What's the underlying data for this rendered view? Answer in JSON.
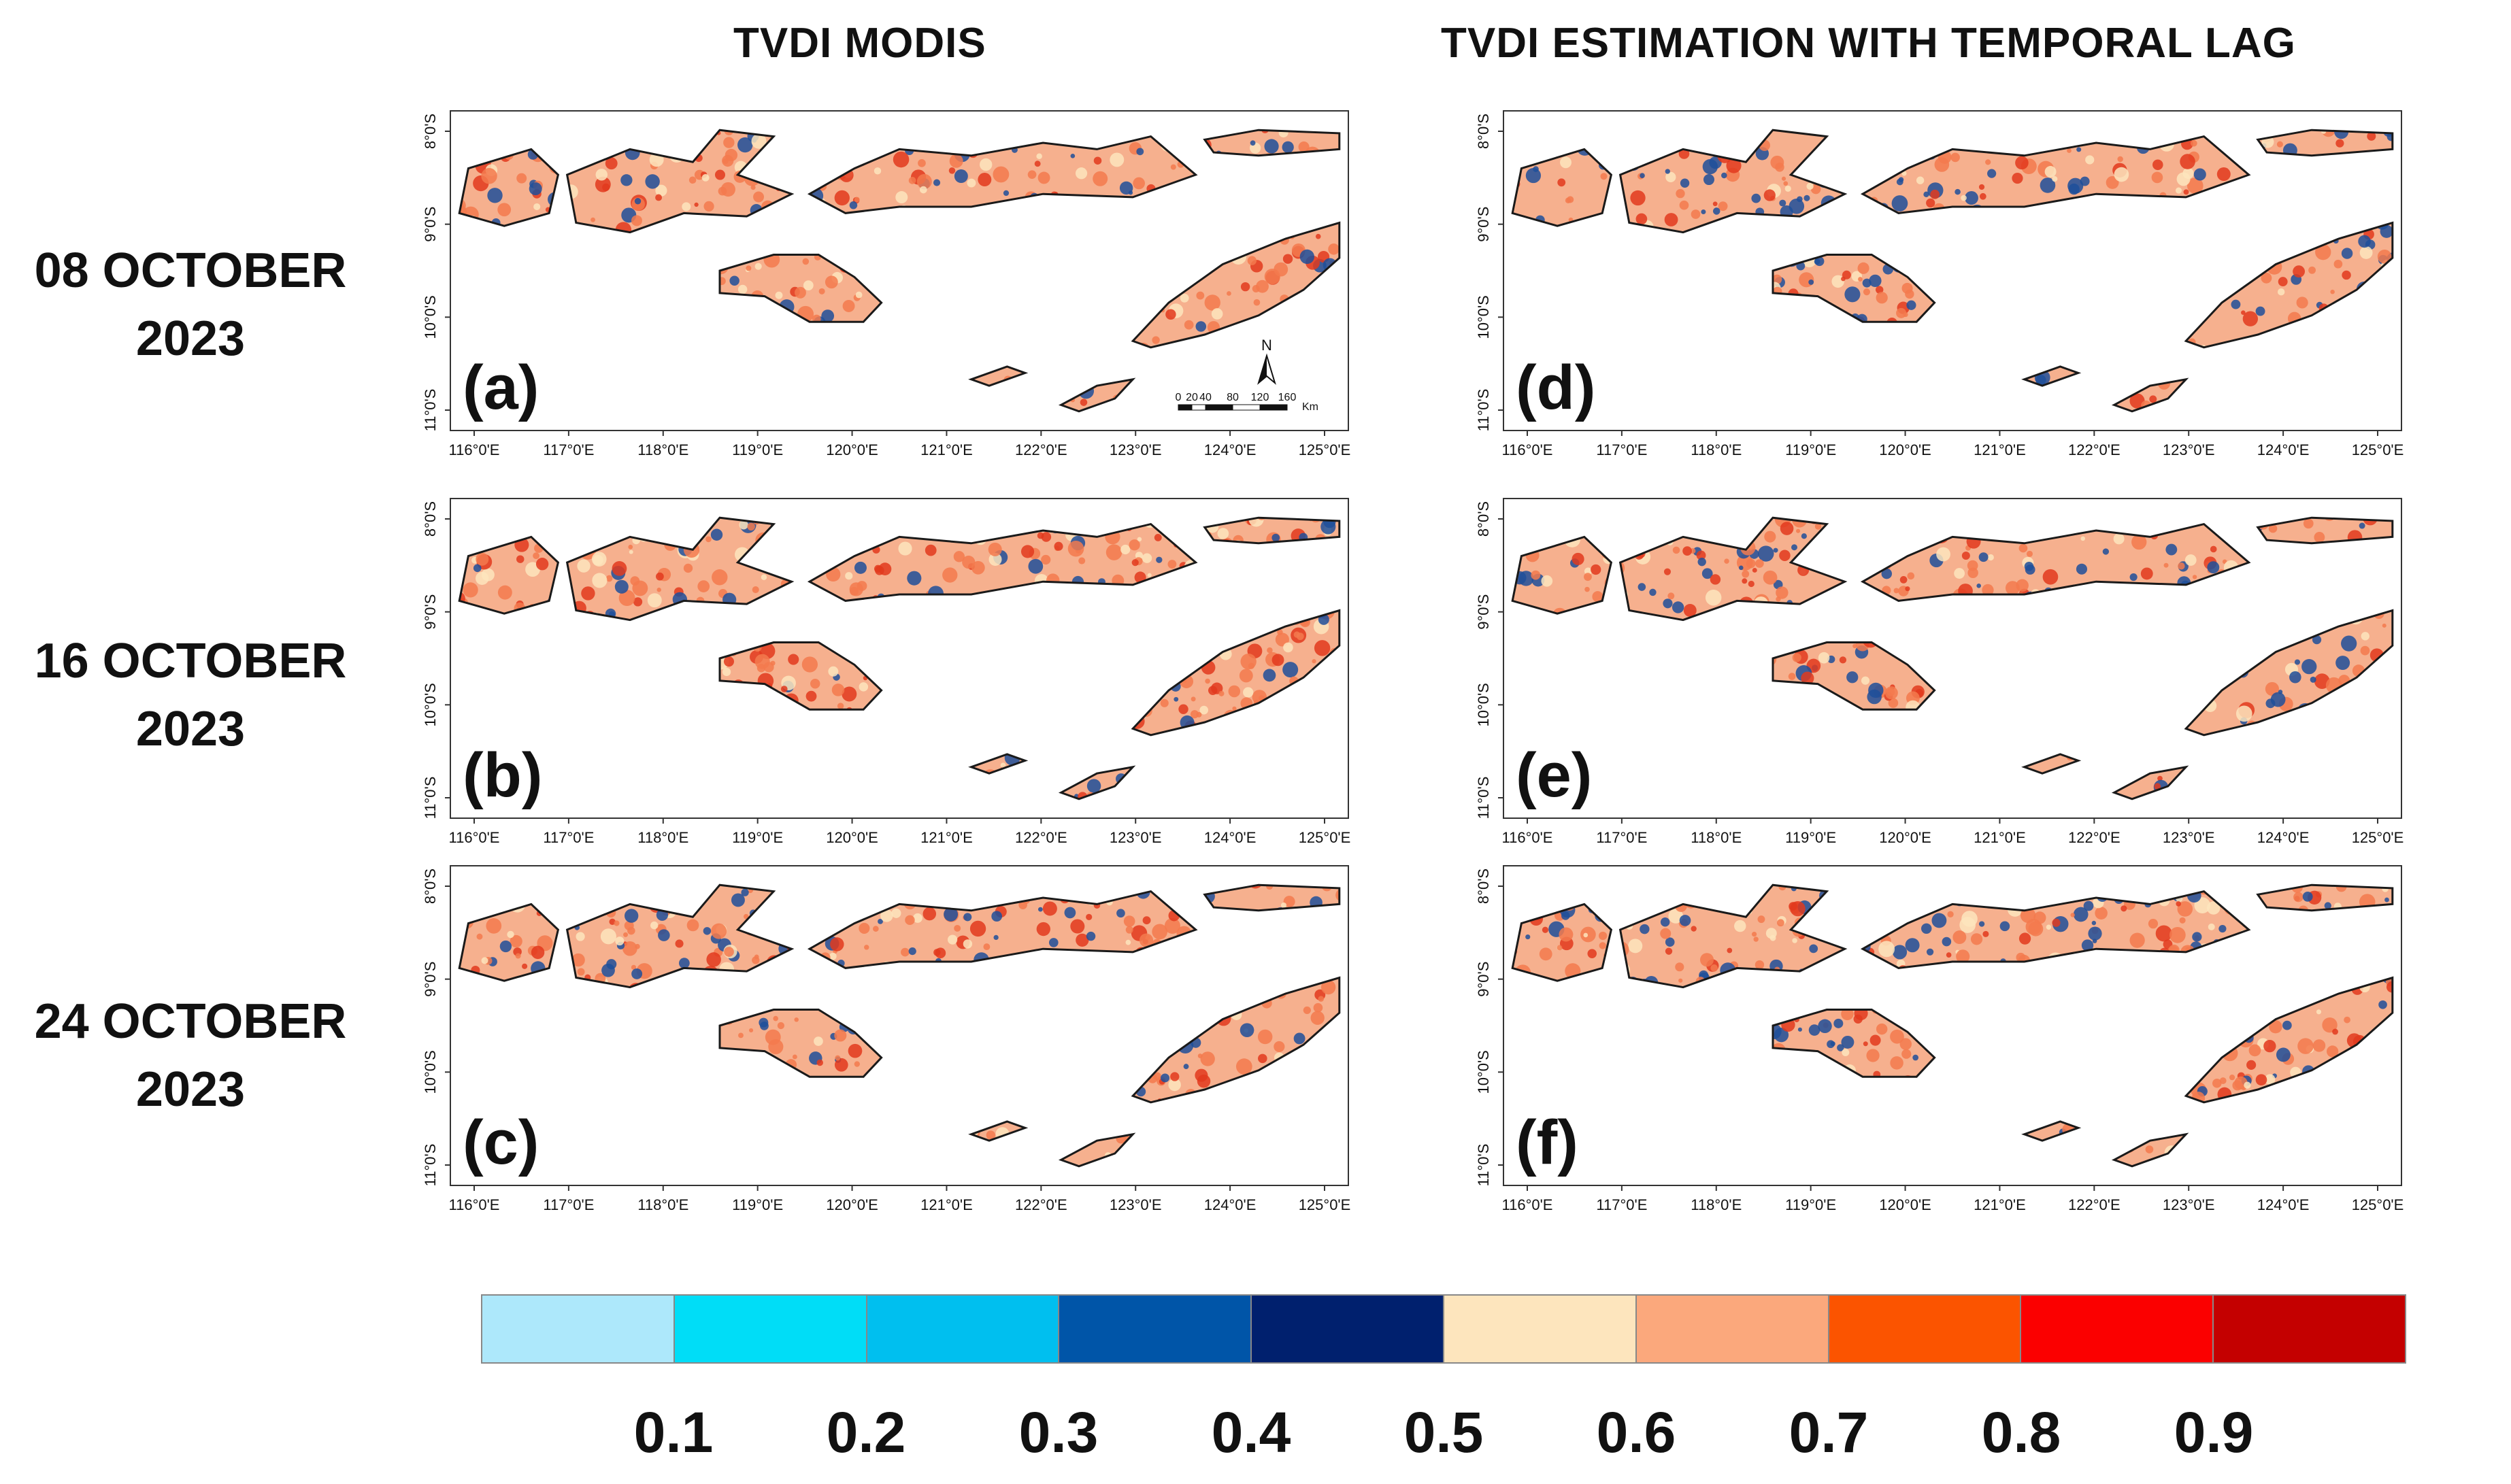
{
  "titles": {
    "left": "TVDI MODIS",
    "right": "TVDI ESTIMATION WITH TEMPORAL LAG"
  },
  "rows": [
    {
      "line1": "08 OCTOBER",
      "line2": "2023"
    },
    {
      "line1": "16 OCTOBER",
      "line2": "2023"
    },
    {
      "line1": "24 OCTOBER",
      "line2": "2023"
    }
  ],
  "panels": [
    {
      "letter": "(a)",
      "col": 0,
      "row": 0,
      "heat": 0.78
    },
    {
      "letter": "(b)",
      "col": 0,
      "row": 1,
      "heat": 0.74
    },
    {
      "letter": "(c)",
      "col": 0,
      "row": 2,
      "heat": 0.72
    },
    {
      "letter": "(d)",
      "col": 1,
      "row": 0,
      "heat": 0.62
    },
    {
      "letter": "(e)",
      "col": 1,
      "row": 1,
      "heat": 0.64
    },
    {
      "letter": "(f)",
      "col": 1,
      "row": 2,
      "heat": 0.63
    }
  ],
  "lon_ticks": [
    "116°0'E",
    "117°0'E",
    "118°0'E",
    "119°0'E",
    "120°0'E",
    "121°0'E",
    "122°0'E",
    "123°0'E",
    "124°0'E",
    "125°0'E"
  ],
  "lat_ticks": [
    "8°0'S",
    "9°0'S",
    "10°0'S",
    "11°0'S"
  ],
  "scalebar": {
    "labels": [
      "0",
      "20",
      "40",
      "80",
      "120",
      "160"
    ],
    "unit": "Km",
    "north": "N"
  },
  "legend": {
    "colors": [
      "#ade8fb",
      "#00ddf7",
      "#00bfef",
      "#0055a8",
      "#00206e",
      "#fde5bd",
      "#fba87c",
      "#fb5400",
      "#fb0000",
      "#c40000"
    ],
    "ticks": [
      "0.1",
      "0.2",
      "0.3",
      "0.4",
      "0.5",
      "0.6",
      "0.7",
      "0.8",
      "0.9"
    ]
  },
  "palette": {
    "land_light": "#f6b08e",
    "land_mid": "#f37a4d",
    "land_hot": "#e2391d",
    "dry_blue": "#1f4f9a",
    "outline": "#1a1a1a"
  }
}
